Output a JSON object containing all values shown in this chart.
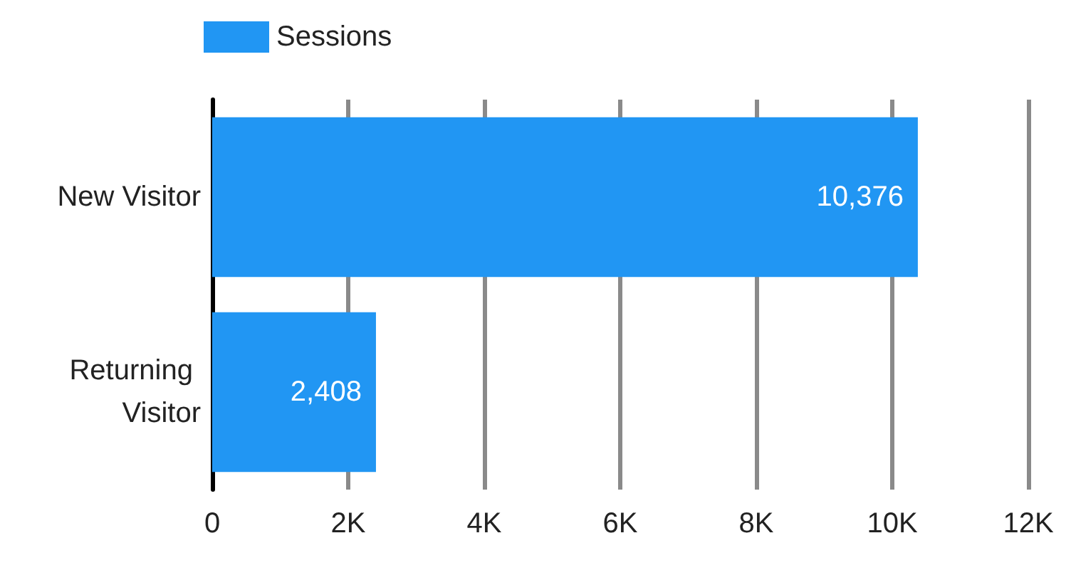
{
  "chart_data": {
    "type": "bar",
    "orientation": "horizontal",
    "categories": [
      "New Visitor",
      "Returning Visitor"
    ],
    "series": [
      {
        "name": "Sessions",
        "color": "#2196f3",
        "values": [
          10376,
          2408
        ],
        "value_labels": [
          "10,376",
          "2,408"
        ]
      }
    ],
    "xlim": [
      0,
      12000
    ],
    "xticks": [
      0,
      {
        "value": 2000,
        "label": "2K"
      },
      {
        "value": 4000,
        "label": "4K"
      },
      {
        "value": 6000,
        "label": "6K"
      },
      {
        "value": 8000,
        "label": "8K"
      },
      {
        "value": 10000,
        "label": "10K"
      },
      {
        "value": 12000,
        "label": "12K"
      }
    ],
    "grid": "x",
    "legend": "top left"
  }
}
